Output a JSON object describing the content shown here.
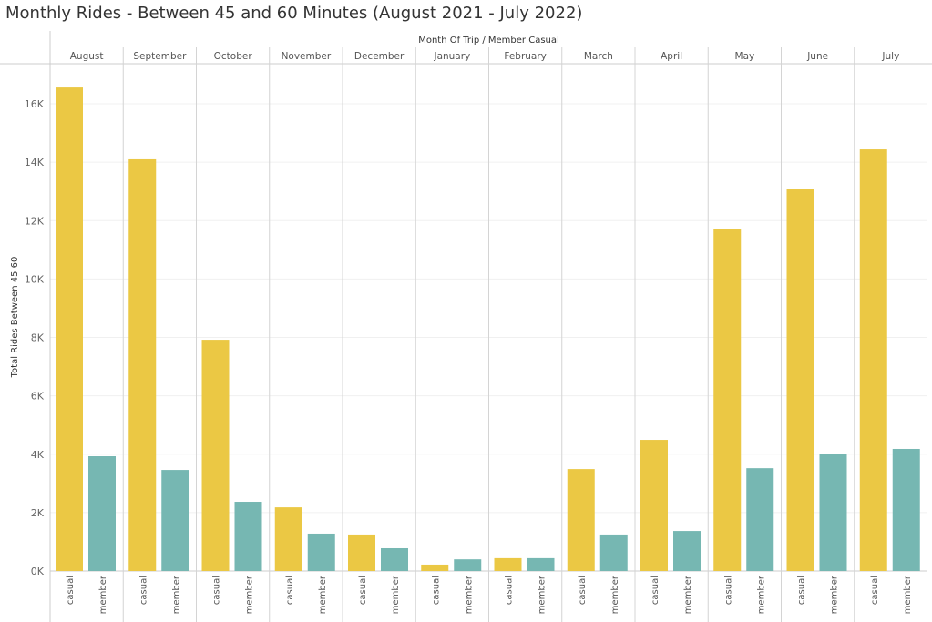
{
  "chart_data": {
    "type": "bar",
    "title": "Monthly Rides - Between 45 and 60 Minutes (August 2021 - July 2022)",
    "xlabel": "Month Of Trip  /  Member Casual",
    "ylabel": "Total Rides Between 45 60",
    "ylim": [
      0,
      17500
    ],
    "yticks": [
      {
        "v": 0,
        "label": "0K"
      },
      {
        "v": 2000,
        "label": "2K"
      },
      {
        "v": 4000,
        "label": "4K"
      },
      {
        "v": 6000,
        "label": "6K"
      },
      {
        "v": 8000,
        "label": "8K"
      },
      {
        "v": 10000,
        "label": "10K"
      },
      {
        "v": 12000,
        "label": "12K"
      },
      {
        "v": 14000,
        "label": "14K"
      },
      {
        "v": 16000,
        "label": "16K"
      }
    ],
    "categories": [
      "August",
      "September",
      "October",
      "November",
      "December",
      "January",
      "February",
      "March",
      "April",
      "May",
      "June",
      "July"
    ],
    "sub_categories": [
      "casual",
      "member"
    ],
    "colors": {
      "casual": "#EBC844",
      "member": "#76B7B2"
    },
    "series": [
      {
        "name": "casual",
        "values": [
          16560,
          14100,
          7920,
          2180,
          1250,
          220,
          440,
          3490,
          4490,
          11700,
          13070,
          14440
        ]
      },
      {
        "name": "member",
        "values": [
          3930,
          3460,
          2370,
          1280,
          780,
          400,
          440,
          1250,
          1370,
          3520,
          4020,
          4180
        ]
      }
    ],
    "grid": true
  }
}
